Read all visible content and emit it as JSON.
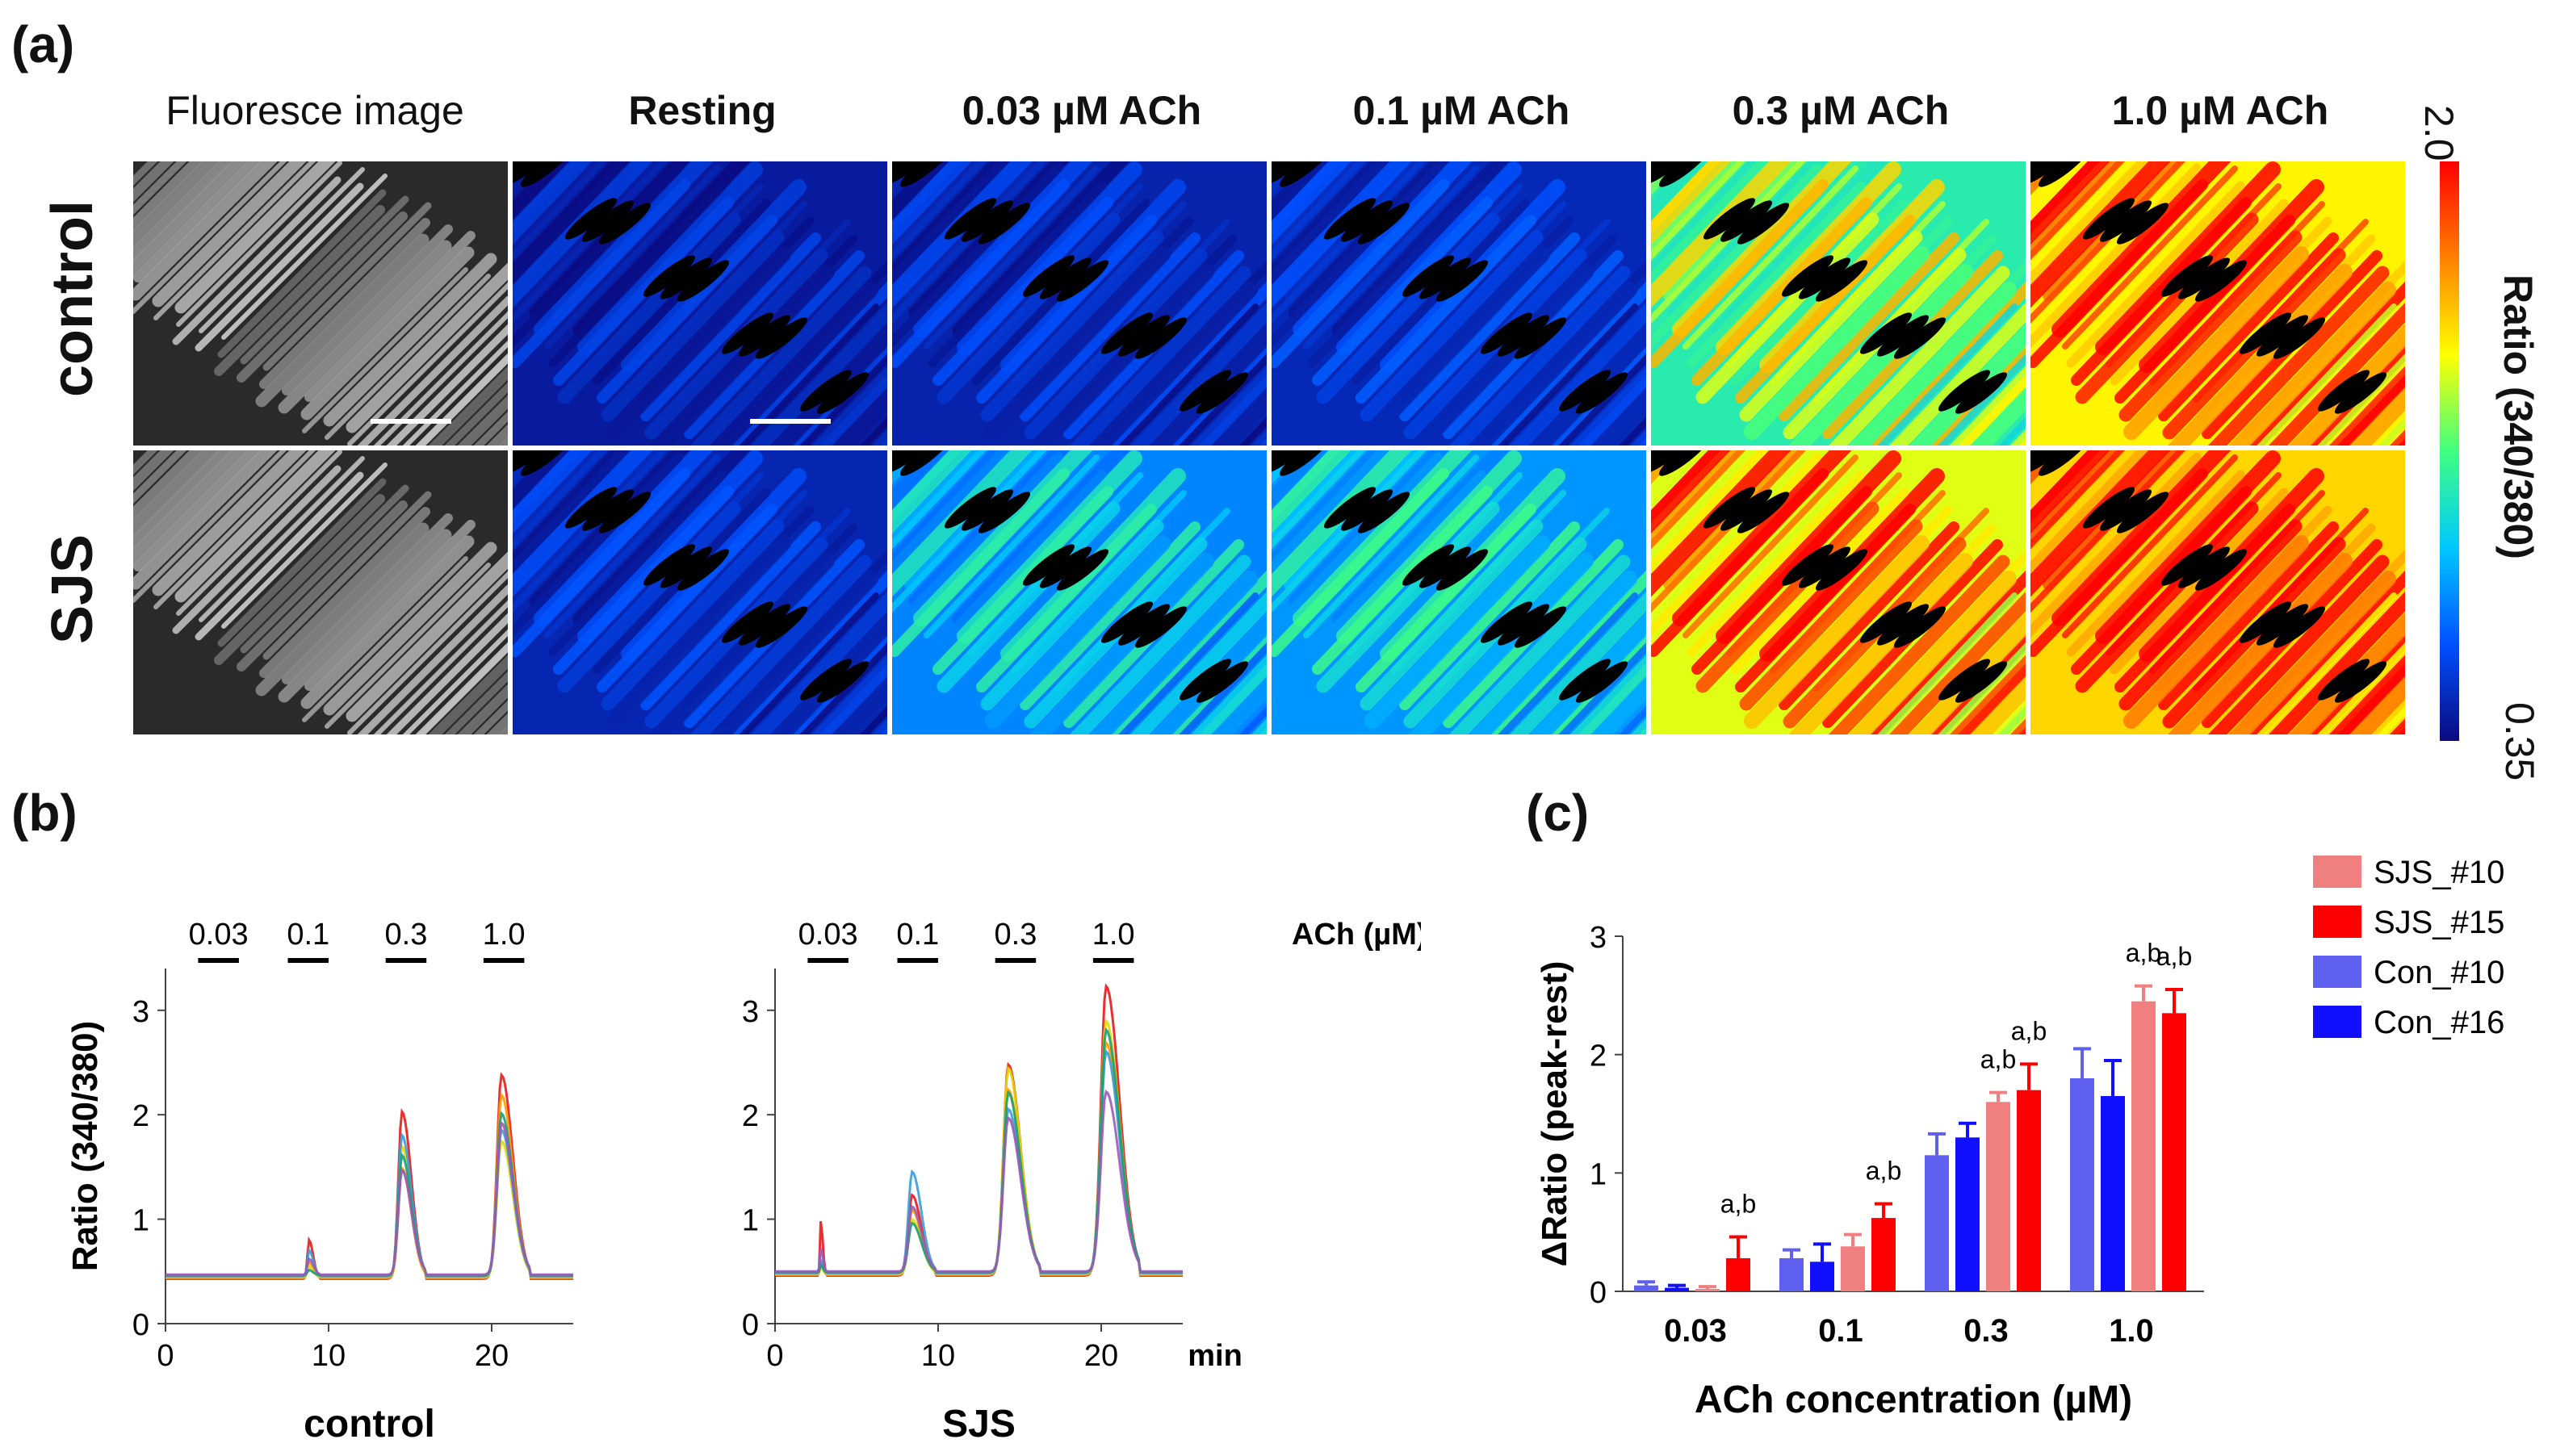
{
  "panel_labels": {
    "a": "(a)",
    "b": "(b)",
    "c": "(c)"
  },
  "panel_a": {
    "columns": [
      "Fluoresce image",
      "Resting",
      "0.03 µM ACh",
      "0.1 µM ACh",
      "0.3 µM ACh",
      "1.0 µM ACh"
    ],
    "rows": [
      "control",
      "SJS"
    ],
    "colorbar": {
      "max": "2.0",
      "min": "0.35",
      "label": "Ratio (340/380)",
      "colors": [
        "#0a0a80",
        "#0050ff",
        "#00c8ff",
        "#40ff80",
        "#ffff00",
        "#ff8000",
        "#ff0000"
      ]
    },
    "levels": {
      "control": [
        0.0,
        0.05,
        0.07,
        0.09,
        0.55,
        0.85
      ],
      "SJS": [
        0.0,
        0.08,
        0.3,
        0.33,
        0.8,
        0.9
      ]
    }
  },
  "chart_data": [
    {
      "type": "line",
      "title": "control",
      "xlabel": "min",
      "ylabel": "Ratio (340/380)",
      "xlim": [
        0,
        25
      ],
      "ylim": [
        0,
        3.4
      ],
      "xticks": [
        0,
        10,
        20
      ],
      "yticks": [
        0,
        1,
        2,
        3
      ],
      "stimuli_label": "ACh (µM)",
      "stimuli": [
        {
          "label": "0.03",
          "start": 2,
          "end": 4.5
        },
        {
          "label": "0.1",
          "start": 7.5,
          "end": 10
        },
        {
          "label": "0.3",
          "start": 13.5,
          "end": 16
        },
        {
          "label": "1.0",
          "start": 19.5,
          "end": 22
        }
      ],
      "baseline": 0.45,
      "peaks": [
        {
          "x": 8.8,
          "width": 0.4,
          "values": [
            0.82,
            0.6,
            0.55,
            0.7,
            0.5,
            0.6
          ]
        },
        {
          "x": 14.5,
          "width": 0.9,
          "values": [
            2.05,
            1.5,
            1.7,
            1.8,
            1.6,
            1.45
          ]
        },
        {
          "x": 20.6,
          "width": 1.1,
          "values": [
            2.4,
            2.2,
            1.75,
            1.85,
            2.0,
            1.9
          ]
        }
      ],
      "series_colors": [
        "#e41a1c",
        "#ff9900",
        "#e6d800",
        "#3b9cd9",
        "#1a9e77",
        "#9b59b6"
      ]
    },
    {
      "type": "line",
      "title": "SJS",
      "xlabel": "min",
      "ylabel": "",
      "xlim": [
        0,
        25
      ],
      "ylim": [
        0,
        3.4
      ],
      "xticks": [
        0,
        10,
        20
      ],
      "yticks": [
        0,
        1,
        2,
        3
      ],
      "stimuli": [
        {
          "label": "0.03",
          "start": 2,
          "end": 4.5
        },
        {
          "label": "0.1",
          "start": 7.5,
          "end": 10
        },
        {
          "label": "0.3",
          "start": 13.5,
          "end": 16
        },
        {
          "label": "1.0",
          "start": 19.5,
          "end": 22
        }
      ],
      "baseline": 0.48,
      "peaks": [
        {
          "x": 2.8,
          "width": 0.2,
          "values": [
            1.0,
            0.6,
            0.55,
            0.6,
            0.55,
            0.7
          ]
        },
        {
          "x": 8.4,
          "width": 0.9,
          "values": [
            1.25,
            1.1,
            1.0,
            1.45,
            0.95,
            1.1
          ]
        },
        {
          "x": 14.3,
          "width": 1.2,
          "values": [
            2.5,
            2.25,
            2.45,
            2.05,
            2.2,
            1.95
          ]
        },
        {
          "x": 20.3,
          "width": 1.3,
          "values": [
            3.25,
            2.7,
            2.9,
            2.6,
            2.8,
            2.2
          ]
        }
      ],
      "series_colors": [
        "#e41a1c",
        "#ff9900",
        "#e6d800",
        "#3b9cd9",
        "#1a9e77",
        "#9b59b6"
      ]
    },
    {
      "type": "bar",
      "xlabel": "ACh concentration (µM)",
      "ylabel": "ΔRatio (peak-rest)",
      "ylim": [
        0,
        3
      ],
      "yticks": [
        0,
        1,
        2,
        3
      ],
      "categories": [
        "0.03",
        "0.1",
        "0.3",
        "1.0"
      ],
      "series": [
        {
          "name": "Con_#10",
          "color": "#6060f0",
          "values": [
            0.05,
            0.28,
            1.15,
            1.8
          ],
          "errors": [
            0.03,
            0.07,
            0.18,
            0.25
          ]
        },
        {
          "name": "Con_#16",
          "color": "#1010ff",
          "values": [
            0.03,
            0.25,
            1.3,
            1.65
          ],
          "errors": [
            0.02,
            0.15,
            0.12,
            0.3
          ]
        },
        {
          "name": "SJS_#10",
          "color": "#f08080",
          "values": [
            0.02,
            0.38,
            1.6,
            2.45
          ],
          "errors": [
            0.02,
            0.1,
            0.08,
            0.13
          ]
        },
        {
          "name": "SJS_#15",
          "color": "#ff0000",
          "values": [
            0.28,
            0.62,
            1.7,
            2.35
          ],
          "errors": [
            0.18,
            0.12,
            0.22,
            0.2
          ]
        }
      ],
      "annotations": [
        {
          "category": "0.03",
          "series": "SJS_#15",
          "text": "a,b"
        },
        {
          "category": "0.1",
          "series": "SJS_#15",
          "text": "a,b"
        },
        {
          "category": "0.3",
          "series": "SJS_#10",
          "text": "a,b"
        },
        {
          "category": "0.3",
          "series": "SJS_#15",
          "text": "a,b"
        },
        {
          "category": "1.0",
          "series": "SJS_#10",
          "text": "a,b"
        },
        {
          "category": "1.0",
          "series": "SJS_#15",
          "text": "a,b"
        }
      ],
      "legend": [
        "SJS_#10",
        "SJS_#15",
        "Con_#10",
        "Con_#16"
      ],
      "legend_position": "top-right"
    }
  ]
}
